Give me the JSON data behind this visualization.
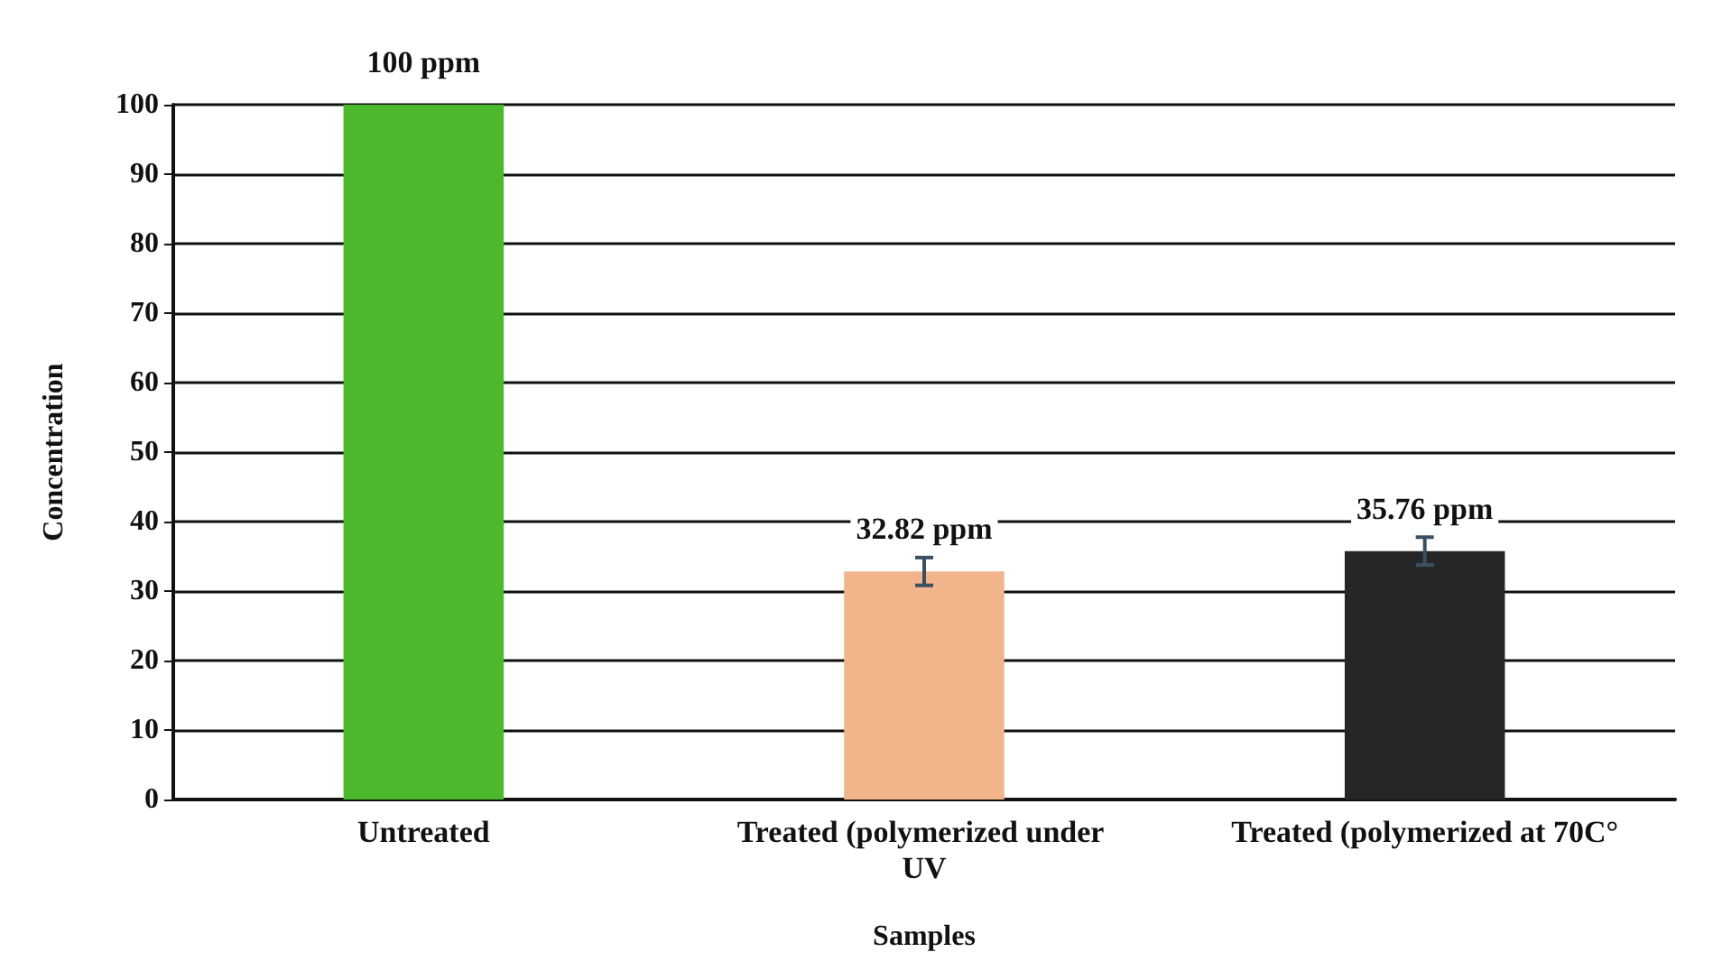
{
  "chart_data": {
    "type": "bar",
    "xlabel": "Samples",
    "ylabel": "Concentration",
    "categories": [
      "Untreated",
      "Treated (polymerized under UV",
      "Treated (polymerized at 70C°"
    ],
    "values": [
      100,
      32.82,
      35.76
    ],
    "colors": [
      "#4cb82c",
      "#f2b48a",
      "#262626"
    ],
    "errors": [
      null,
      2,
      2
    ],
    "value_labels": [
      "100 ppm",
      "32.82 ppm",
      "35.76 ppm"
    ],
    "ylim": [
      0,
      100
    ],
    "yticks": [
      0,
      10,
      20,
      30,
      40,
      50,
      60,
      70,
      80,
      90,
      100
    ],
    "grid": "y"
  }
}
